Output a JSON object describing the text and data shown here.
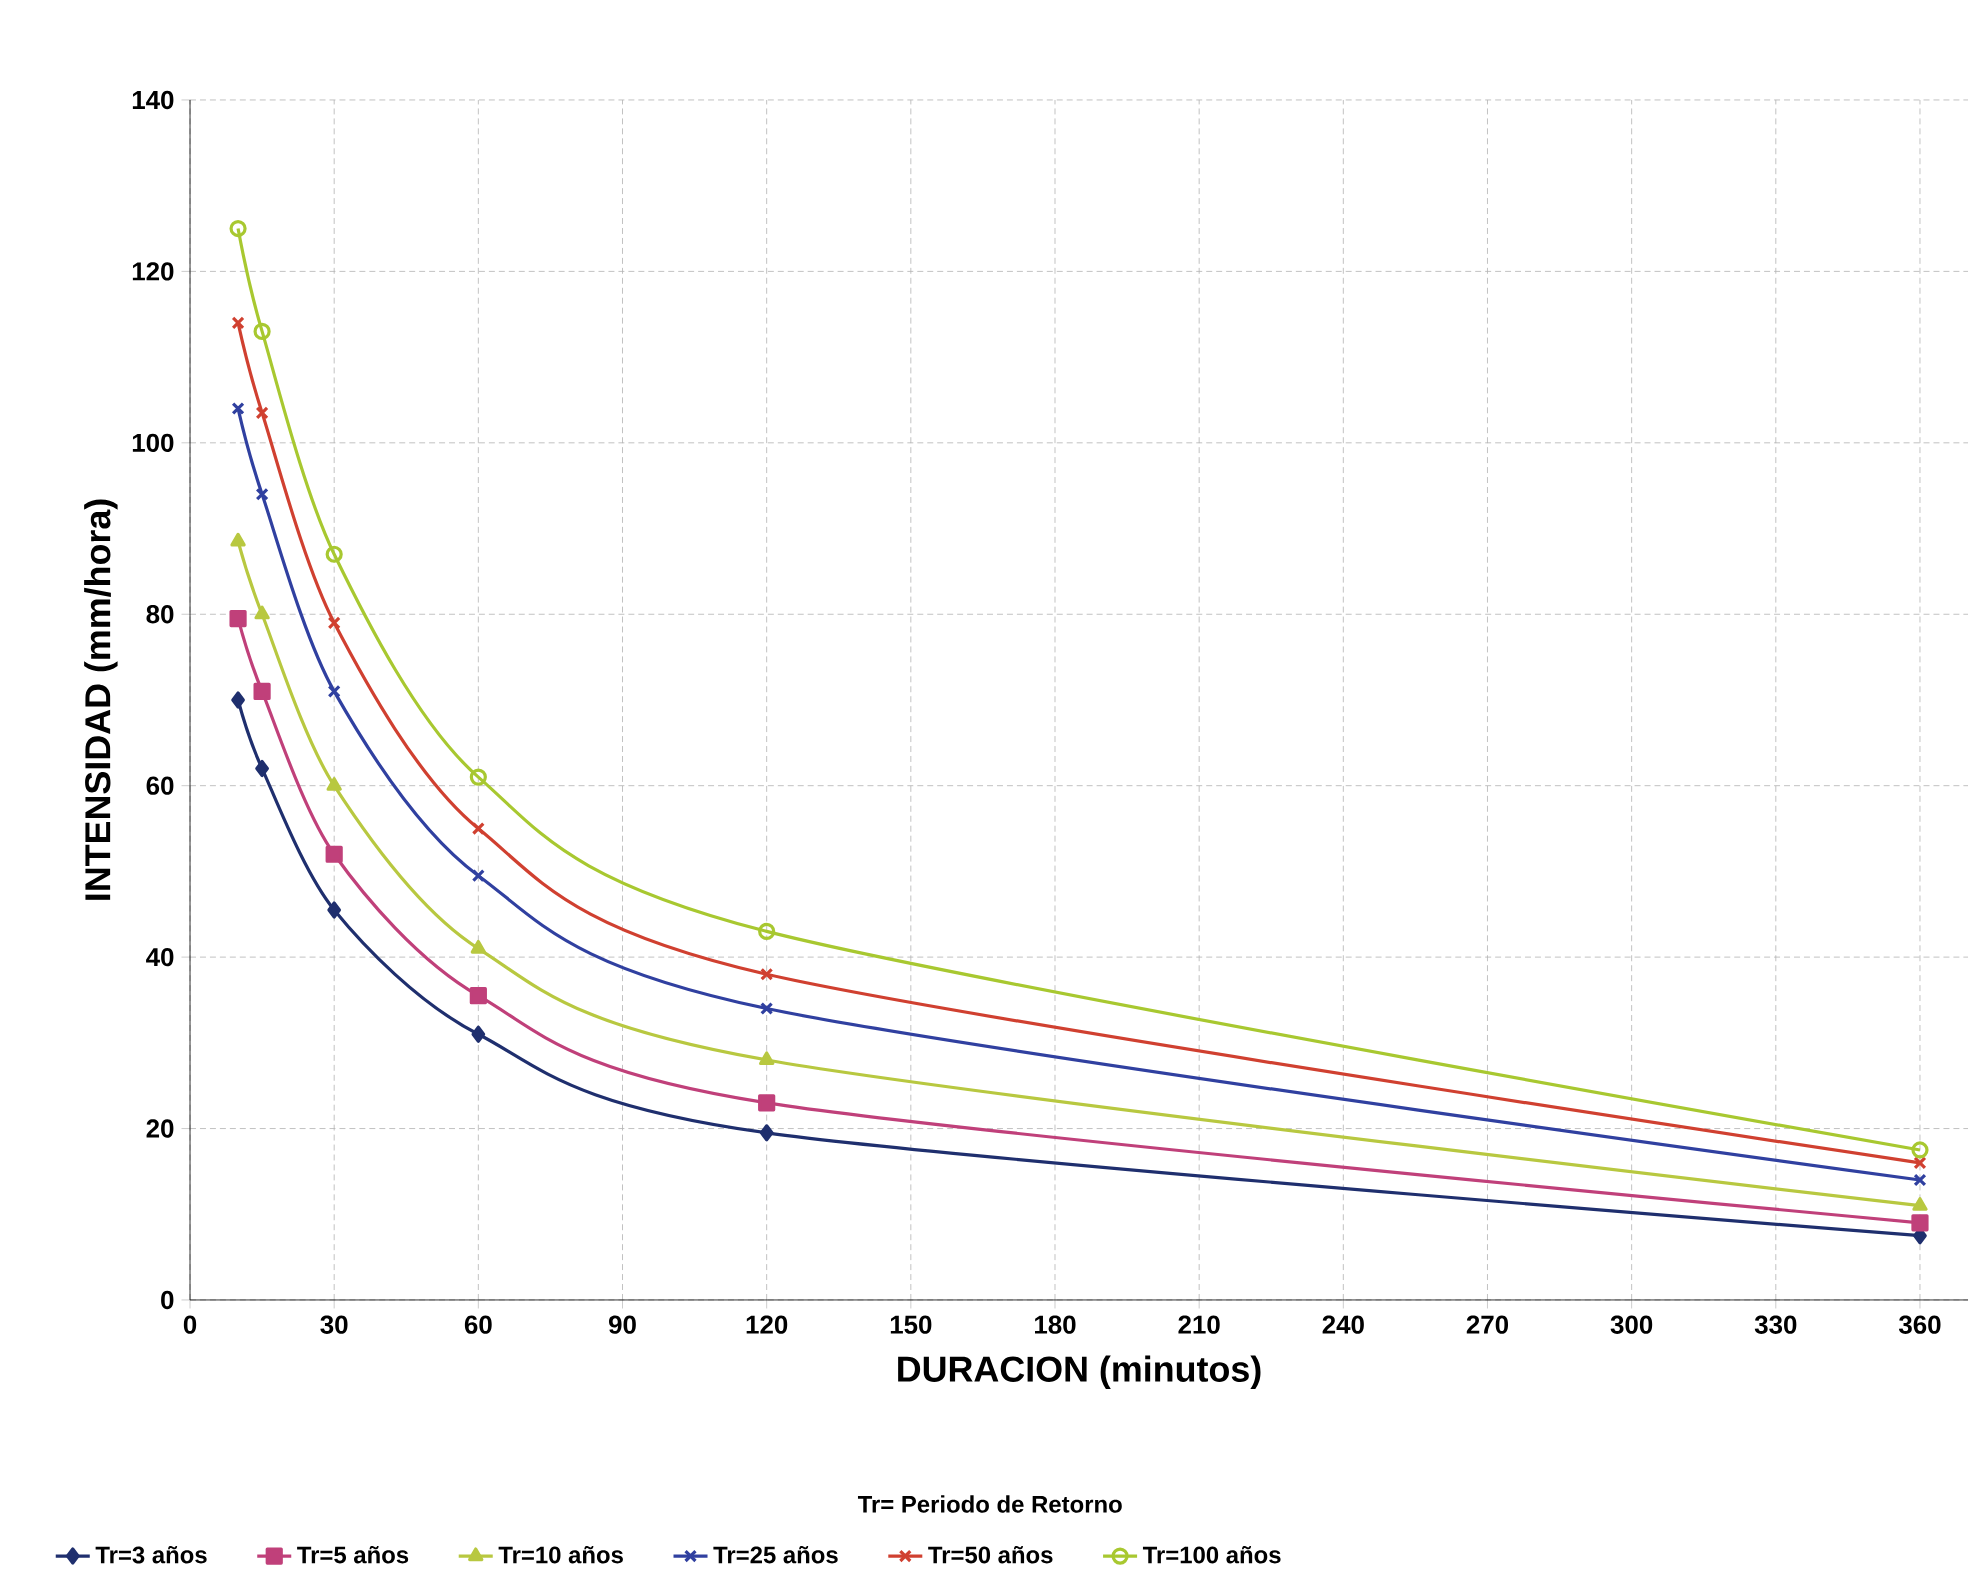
{
  "chart_data": {
    "type": "line",
    "xlabel": "DURACION (minutos)",
    "ylabel": "INTENSIDAD (mm/hora)",
    "legend_title": "Tr= Periodo de Retorno",
    "x": [
      10,
      15,
      30,
      60,
      120,
      360
    ],
    "series": [
      {
        "name": "Tr=3 años",
        "color": "#1f2f6e",
        "marker": "diamond",
        "values": [
          70,
          62,
          45.5,
          31,
          19.5,
          7.5
        ]
      },
      {
        "name": "Tr=5 años",
        "color": "#c0407a",
        "marker": "square",
        "values": [
          79.5,
          71,
          52,
          35.5,
          23,
          9
        ]
      },
      {
        "name": "Tr=10 años",
        "color": "#b8c840",
        "marker": "triangle",
        "values": [
          88.5,
          80,
          60,
          41,
          28,
          11
        ]
      },
      {
        "name": "Tr=25 años",
        "color": "#3040a0",
        "marker": "cross",
        "values": [
          104,
          94,
          71,
          49.5,
          34,
          14
        ]
      },
      {
        "name": "Tr=50 años",
        "color": "#d04030",
        "marker": "cross",
        "values": [
          114,
          103.5,
          79,
          55,
          38,
          16
        ]
      },
      {
        "name": "Tr=100 años",
        "color": "#a8c830",
        "marker": "circle",
        "values": [
          125,
          113,
          87,
          61,
          43,
          17.5
        ]
      }
    ],
    "xlim": [
      0,
      370
    ],
    "xticks": [
      0,
      30,
      60,
      90,
      120,
      150,
      180,
      210,
      240,
      270,
      300,
      330,
      360
    ],
    "ylim": [
      0,
      140
    ],
    "yticks": [
      0,
      20,
      40,
      60,
      80,
      100,
      120,
      140
    ],
    "grid": true,
    "legend": "bottom"
  }
}
